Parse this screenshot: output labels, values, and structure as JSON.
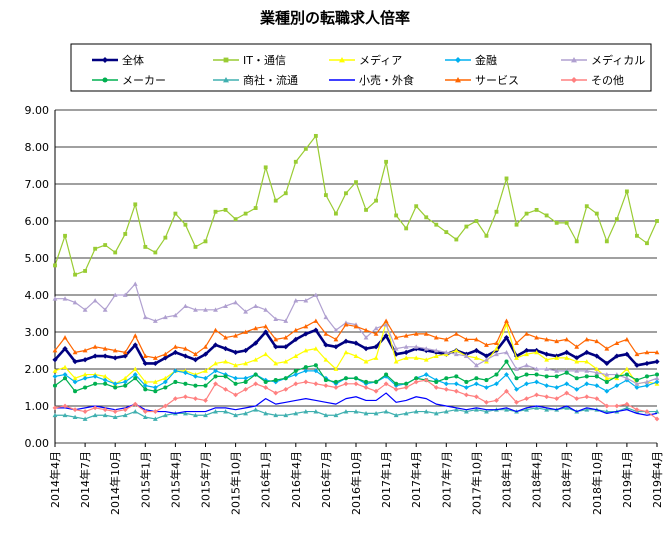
{
  "chart_data": {
    "type": "line",
    "title": "業種別の転職求人倍率",
    "xlabel": "",
    "ylabel": "",
    "ylim": [
      0,
      9
    ],
    "y_ticks": [
      "0.00",
      "1.00",
      "2.00",
      "3.00",
      "4.00",
      "5.00",
      "6.00",
      "7.00",
      "8.00",
      "9.00"
    ],
    "grid": true,
    "legend_position": "top",
    "x_tick_labels": [
      "2014年4月",
      "2014年7月",
      "2014年10月",
      "2015年1月",
      "2015年4月",
      "2015年7月",
      "2015年10月",
      "2016年1月",
      "2016年4月",
      "2016年7月",
      "2016年10月",
      "2017年1月",
      "2017年4月",
      "2017年7月",
      "2017年10月",
      "2018年1月",
      "2018年4月",
      "2018年7月",
      "2018年10月",
      "2019年1月",
      "2019年4月"
    ],
    "x": [
      "2014-04",
      "2014-05",
      "2014-06",
      "2014-07",
      "2014-08",
      "2014-09",
      "2014-10",
      "2014-11",
      "2014-12",
      "2015-01",
      "2015-02",
      "2015-03",
      "2015-04",
      "2015-05",
      "2015-06",
      "2015-07",
      "2015-08",
      "2015-09",
      "2015-10",
      "2015-11",
      "2015-12",
      "2016-01",
      "2016-02",
      "2016-03",
      "2016-04",
      "2016-05",
      "2016-06",
      "2016-07",
      "2016-08",
      "2016-09",
      "2016-10",
      "2016-11",
      "2016-12",
      "2017-01",
      "2017-02",
      "2017-03",
      "2017-04",
      "2017-05",
      "2017-06",
      "2017-07",
      "2017-08",
      "2017-09",
      "2017-10",
      "2017-11",
      "2017-12",
      "2018-01",
      "2018-02",
      "2018-03",
      "2018-04",
      "2018-05",
      "2018-06",
      "2018-07",
      "2018-08",
      "2018-09",
      "2018-10",
      "2018-11",
      "2018-12",
      "2019-01",
      "2019-02",
      "2019-03",
      "2019-04"
    ],
    "series": [
      {
        "name": "全体",
        "color": "#000080",
        "marker": "diamond",
        "values": [
          2.25,
          2.55,
          2.2,
          2.25,
          2.35,
          2.35,
          2.3,
          2.35,
          2.65,
          2.15,
          2.15,
          2.3,
          2.45,
          2.35,
          2.25,
          2.4,
          2.65,
          2.55,
          2.45,
          2.5,
          2.7,
          3.0,
          2.6,
          2.6,
          2.8,
          2.95,
          3.05,
          2.65,
          2.6,
          2.75,
          2.7,
          2.55,
          2.6,
          2.9,
          2.4,
          2.45,
          2.55,
          2.5,
          2.45,
          2.4,
          2.5,
          2.4,
          2.5,
          2.35,
          2.5,
          2.85,
          2.35,
          2.5,
          2.5,
          2.4,
          2.35,
          2.45,
          2.3,
          2.45,
          2.35,
          2.15,
          2.35,
          2.4,
          2.1,
          2.15,
          2.2
        ]
      },
      {
        "name": "IT・通信",
        "color": "#99CC33",
        "marker": "square",
        "values": [
          4.8,
          5.6,
          4.55,
          4.65,
          5.25,
          5.35,
          5.15,
          5.65,
          6.45,
          5.3,
          5.15,
          5.55,
          6.2,
          5.9,
          5.3,
          5.45,
          6.25,
          6.3,
          6.05,
          6.2,
          6.35,
          7.45,
          6.55,
          6.75,
          7.6,
          7.95,
          8.3,
          6.7,
          6.2,
          6.75,
          7.05,
          6.3,
          6.55,
          7.6,
          6.15,
          5.8,
          6.4,
          6.1,
          5.9,
          5.7,
          5.5,
          5.85,
          6.0,
          5.6,
          6.25,
          7.15,
          5.9,
          6.2,
          6.3,
          6.15,
          5.95,
          5.95,
          5.45,
          6.4,
          6.2,
          5.45,
          6.05,
          6.8,
          5.6,
          5.4,
          6.0
        ]
      },
      {
        "name": "メディア",
        "color": "#FFFF00",
        "marker": "triangle",
        "values": [
          1.95,
          2.05,
          1.75,
          1.85,
          1.85,
          1.8,
          1.6,
          1.75,
          2.0,
          1.65,
          1.65,
          1.75,
          1.95,
          1.95,
          1.85,
          1.95,
          2.15,
          2.2,
          2.1,
          2.15,
          2.25,
          2.4,
          2.15,
          2.2,
          2.35,
          2.5,
          2.55,
          2.25,
          2.0,
          2.45,
          2.35,
          2.2,
          2.3,
          3.25,
          2.2,
          2.3,
          2.3,
          2.25,
          2.35,
          2.4,
          2.5,
          2.35,
          2.3,
          2.2,
          2.55,
          3.2,
          2.3,
          2.4,
          2.45,
          2.25,
          2.3,
          2.3,
          2.2,
          2.2,
          2.0,
          1.75,
          1.75,
          2.0,
          1.6,
          1.65,
          1.6
        ]
      },
      {
        "name": "金融",
        "color": "#00B0F0",
        "marker": "diamond",
        "values": [
          1.8,
          1.85,
          1.65,
          1.75,
          1.8,
          1.7,
          1.6,
          1.65,
          1.85,
          1.55,
          1.5,
          1.65,
          1.95,
          1.9,
          1.8,
          1.75,
          1.95,
          1.85,
          1.75,
          1.75,
          1.85,
          1.7,
          1.65,
          1.75,
          1.85,
          1.95,
          1.95,
          1.75,
          1.6,
          1.75,
          1.75,
          1.6,
          1.65,
          1.8,
          1.55,
          1.6,
          1.75,
          1.85,
          1.7,
          1.6,
          1.6,
          1.5,
          1.6,
          1.5,
          1.6,
          1.85,
          1.45,
          1.6,
          1.65,
          1.55,
          1.5,
          1.6,
          1.45,
          1.6,
          1.55,
          1.4,
          1.55,
          1.7,
          1.5,
          1.55,
          1.65
        ]
      },
      {
        "name": "メディカル",
        "color": "#B0A0D0",
        "marker": "triangle",
        "values": [
          3.9,
          3.9,
          3.8,
          3.6,
          3.85,
          3.6,
          4.0,
          4.0,
          4.3,
          3.4,
          3.3,
          3.4,
          3.45,
          3.7,
          3.6,
          3.6,
          3.6,
          3.7,
          3.8,
          3.55,
          3.7,
          3.6,
          3.35,
          3.3,
          3.85,
          3.85,
          4.0,
          3.4,
          3.05,
          3.25,
          3.2,
          2.85,
          3.1,
          3.2,
          2.55,
          2.6,
          2.6,
          2.55,
          2.5,
          2.45,
          2.4,
          2.35,
          2.1,
          2.25,
          2.4,
          2.45,
          2.0,
          2.1,
          2.0,
          2.0,
          1.95,
          1.95,
          1.95,
          1.95,
          1.9,
          1.85,
          1.85,
          1.75,
          1.6,
          1.65,
          1.75
        ]
      },
      {
        "name": "メーカー",
        "color": "#00B050",
        "marker": "circle",
        "values": [
          1.55,
          1.75,
          1.4,
          1.5,
          1.6,
          1.6,
          1.5,
          1.55,
          1.75,
          1.45,
          1.4,
          1.5,
          1.65,
          1.6,
          1.55,
          1.55,
          1.8,
          1.8,
          1.6,
          1.65,
          1.85,
          1.65,
          1.7,
          1.75,
          1.95,
          2.05,
          2.1,
          1.7,
          1.65,
          1.75,
          1.75,
          1.65,
          1.65,
          1.85,
          1.6,
          1.6,
          1.75,
          1.7,
          1.65,
          1.75,
          1.8,
          1.65,
          1.75,
          1.7,
          1.85,
          2.2,
          1.75,
          1.85,
          1.85,
          1.8,
          1.8,
          1.9,
          1.75,
          1.8,
          1.8,
          1.65,
          1.8,
          1.85,
          1.7,
          1.8,
          1.85
        ]
      },
      {
        "name": "商社・流通",
        "color": "#40B0B0",
        "marker": "triangle",
        "values": [
          0.75,
          0.75,
          0.7,
          0.65,
          0.75,
          0.75,
          0.7,
          0.75,
          0.85,
          0.7,
          0.65,
          0.75,
          0.8,
          0.8,
          0.75,
          0.75,
          0.85,
          0.85,
          0.75,
          0.8,
          0.9,
          0.8,
          0.75,
          0.75,
          0.8,
          0.85,
          0.85,
          0.75,
          0.75,
          0.85,
          0.85,
          0.8,
          0.8,
          0.85,
          0.75,
          0.8,
          0.85,
          0.85,
          0.8,
          0.85,
          0.9,
          0.85,
          0.9,
          0.85,
          0.9,
          0.9,
          0.85,
          0.9,
          0.95,
          0.9,
          0.9,
          0.95,
          0.85,
          0.9,
          0.9,
          0.85,
          0.85,
          0.95,
          0.85,
          0.85,
          0.85
        ]
      },
      {
        "name": "小売・外食",
        "color": "#0000FF",
        "marker": "none",
        "values": [
          0.95,
          0.95,
          0.9,
          0.95,
          1.0,
          0.95,
          0.9,
          0.95,
          1.05,
          0.9,
          0.85,
          0.85,
          0.8,
          0.85,
          0.85,
          0.85,
          0.95,
          0.95,
          0.9,
          0.95,
          1.0,
          1.2,
          1.05,
          1.1,
          1.15,
          1.2,
          1.15,
          1.1,
          1.05,
          1.2,
          1.25,
          1.15,
          1.15,
          1.35,
          1.1,
          1.15,
          1.25,
          1.2,
          1.05,
          1.0,
          0.95,
          0.9,
          0.95,
          0.9,
          0.9,
          0.95,
          0.85,
          0.95,
          1.0,
          0.95,
          0.9,
          1.0,
          0.85,
          0.95,
          0.9,
          0.8,
          0.85,
          0.9,
          0.8,
          0.75,
          0.8
        ]
      },
      {
        "name": "サービス",
        "color": "#FF6600",
        "marker": "triangle",
        "values": [
          2.5,
          2.85,
          2.45,
          2.5,
          2.6,
          2.55,
          2.5,
          2.45,
          2.9,
          2.35,
          2.3,
          2.4,
          2.6,
          2.55,
          2.4,
          2.6,
          3.05,
          2.85,
          2.9,
          3.0,
          3.1,
          3.15,
          2.8,
          2.85,
          3.05,
          3.15,
          3.3,
          2.95,
          2.8,
          3.2,
          3.15,
          3.05,
          2.95,
          3.3,
          2.85,
          2.9,
          2.95,
          2.95,
          2.85,
          2.8,
          2.95,
          2.8,
          2.8,
          2.65,
          2.7,
          3.3,
          2.7,
          2.95,
          2.85,
          2.8,
          2.75,
          2.8,
          2.6,
          2.8,
          2.75,
          2.55,
          2.7,
          2.8,
          2.4,
          2.45,
          2.45
        ]
      },
      {
        "name": "その他",
        "color": "#FF8080",
        "marker": "diamond",
        "values": [
          0.95,
          1.0,
          0.9,
          0.85,
          0.95,
          0.9,
          0.85,
          0.9,
          1.05,
          0.85,
          0.85,
          1.0,
          1.2,
          1.25,
          1.2,
          1.15,
          1.6,
          1.45,
          1.3,
          1.45,
          1.6,
          1.5,
          1.35,
          1.45,
          1.6,
          1.65,
          1.6,
          1.55,
          1.5,
          1.6,
          1.6,
          1.5,
          1.4,
          1.6,
          1.45,
          1.5,
          1.65,
          1.7,
          1.5,
          1.45,
          1.4,
          1.3,
          1.25,
          1.1,
          1.15,
          1.4,
          1.1,
          1.2,
          1.3,
          1.25,
          1.2,
          1.35,
          1.2,
          1.25,
          1.2,
          1.0,
          1.0,
          1.05,
          0.9,
          0.85,
          0.65
        ]
      }
    ]
  }
}
